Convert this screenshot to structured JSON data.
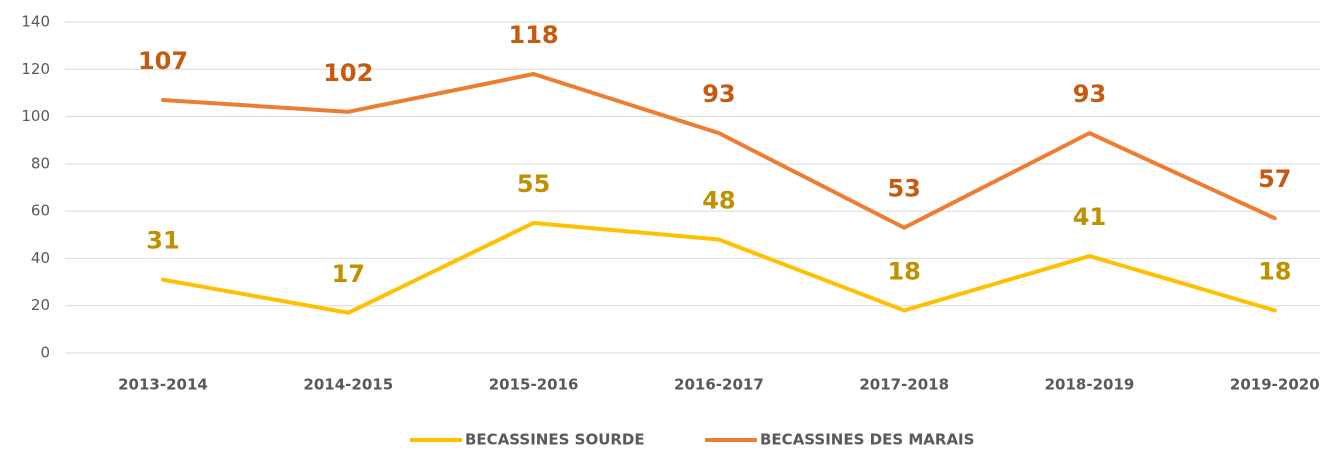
{
  "chart_data": {
    "type": "line",
    "categories": [
      "2013-2014",
      "2014-2015",
      "2015-2016",
      "2016-2017",
      "2017-2018",
      "2018-2019",
      "2019-2020"
    ],
    "series": [
      {
        "name": "BECASSINES SOURDE",
        "color": "#ffc000",
        "label_color": "#bf9000",
        "values": [
          31,
          17,
          55,
          48,
          18,
          41,
          18
        ]
      },
      {
        "name": "BECASSINES DES MARAIS",
        "color": "#ed7d31",
        "label_color": "#c55a11",
        "values": [
          107,
          102,
          118,
          93,
          53,
          93,
          57
        ]
      }
    ],
    "ylim": [
      0,
      140
    ],
    "yticks": [
      0,
      20,
      40,
      60,
      80,
      100,
      120,
      140
    ],
    "grid": true,
    "legend": "bottom"
  }
}
